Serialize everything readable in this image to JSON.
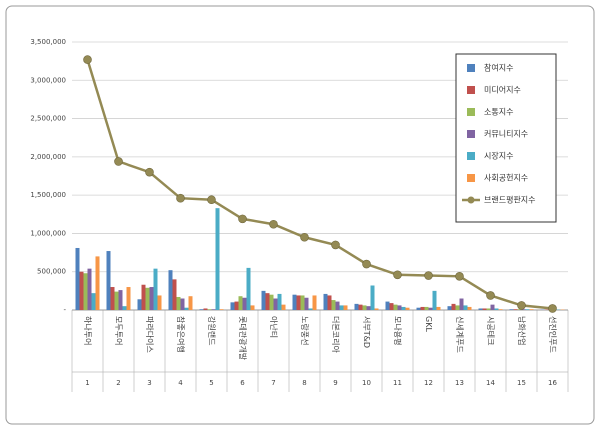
{
  "chart_data": {
    "type": "bar-line",
    "categories": [
      "하나투어",
      "모두투어",
      "파라다이스",
      "참좋은여행",
      "강원랜드",
      "롯데관광개발",
      "아난티",
      "노랑풍선",
      "더본코리아",
      "서부T&D",
      "모나용평",
      "GKL",
      "신세계푸드",
      "시공테크",
      "남화산업",
      "선진인푸드"
    ],
    "ranks": [
      1,
      2,
      3,
      4,
      5,
      6,
      7,
      8,
      9,
      10,
      11,
      12,
      13,
      14,
      15,
      16
    ],
    "series": [
      {
        "name": "참여지수",
        "type": "bar",
        "color": "#4f81bd",
        "values": [
          810000,
          770000,
          140000,
          520000,
          10000,
          100000,
          250000,
          200000,
          210000,
          80000,
          110000,
          30000,
          50000,
          20000,
          10000,
          5000
        ]
      },
      {
        "name": "미디어지수",
        "type": "bar",
        "color": "#c0504d",
        "values": [
          500000,
          300000,
          330000,
          400000,
          20000,
          110000,
          220000,
          190000,
          190000,
          70000,
          90000,
          40000,
          80000,
          20000,
          10000,
          5000
        ]
      },
      {
        "name": "소통지수",
        "type": "bar",
        "color": "#9bbb59",
        "values": [
          480000,
          240000,
          290000,
          170000,
          10000,
          180000,
          200000,
          190000,
          130000,
          60000,
          70000,
          40000,
          60000,
          20000,
          10000,
          5000
        ]
      },
      {
        "name": "커뮤니티지수",
        "type": "bar",
        "color": "#8064a2",
        "values": [
          540000,
          260000,
          300000,
          150000,
          10000,
          160000,
          150000,
          160000,
          110000,
          50000,
          60000,
          30000,
          150000,
          70000,
          10000,
          5000
        ]
      },
      {
        "name": "시장지수",
        "type": "bar",
        "color": "#4bacc6",
        "values": [
          220000,
          50000,
          540000,
          30000,
          1330000,
          550000,
          210000,
          20000,
          60000,
          320000,
          40000,
          250000,
          60000,
          20000,
          10000,
          5000
        ]
      },
      {
        "name": "사회공헌지수",
        "type": "bar",
        "color": "#f79646",
        "values": [
          700000,
          300000,
          190000,
          180000,
          10000,
          60000,
          70000,
          190000,
          60000,
          20000,
          30000,
          40000,
          40000,
          10000,
          10000,
          5000
        ]
      },
      {
        "name": "브랜드평판지수",
        "type": "line",
        "color": "#948a54",
        "values": [
          3270000,
          1940000,
          1800000,
          1460000,
          1440000,
          1190000,
          1120000,
          950000,
          850000,
          600000,
          460000,
          450000,
          440000,
          190000,
          60000,
          20000
        ]
      }
    ],
    "ylim": [
      0,
      3500000
    ],
    "yticks": [
      {
        "value": 0,
        "label": "-"
      },
      {
        "value": 500000,
        "label": "500,000"
      },
      {
        "value": 1000000,
        "label": "1,000,000"
      },
      {
        "value": 1500000,
        "label": "1,500,000"
      },
      {
        "value": 2000000,
        "label": "2,000,000"
      },
      {
        "value": 2500000,
        "label": "2,500,000"
      },
      {
        "value": 3000000,
        "label": "3,000,000"
      },
      {
        "value": 3500000,
        "label": "3,500,000"
      }
    ],
    "grid": true,
    "legend": "top-right"
  }
}
